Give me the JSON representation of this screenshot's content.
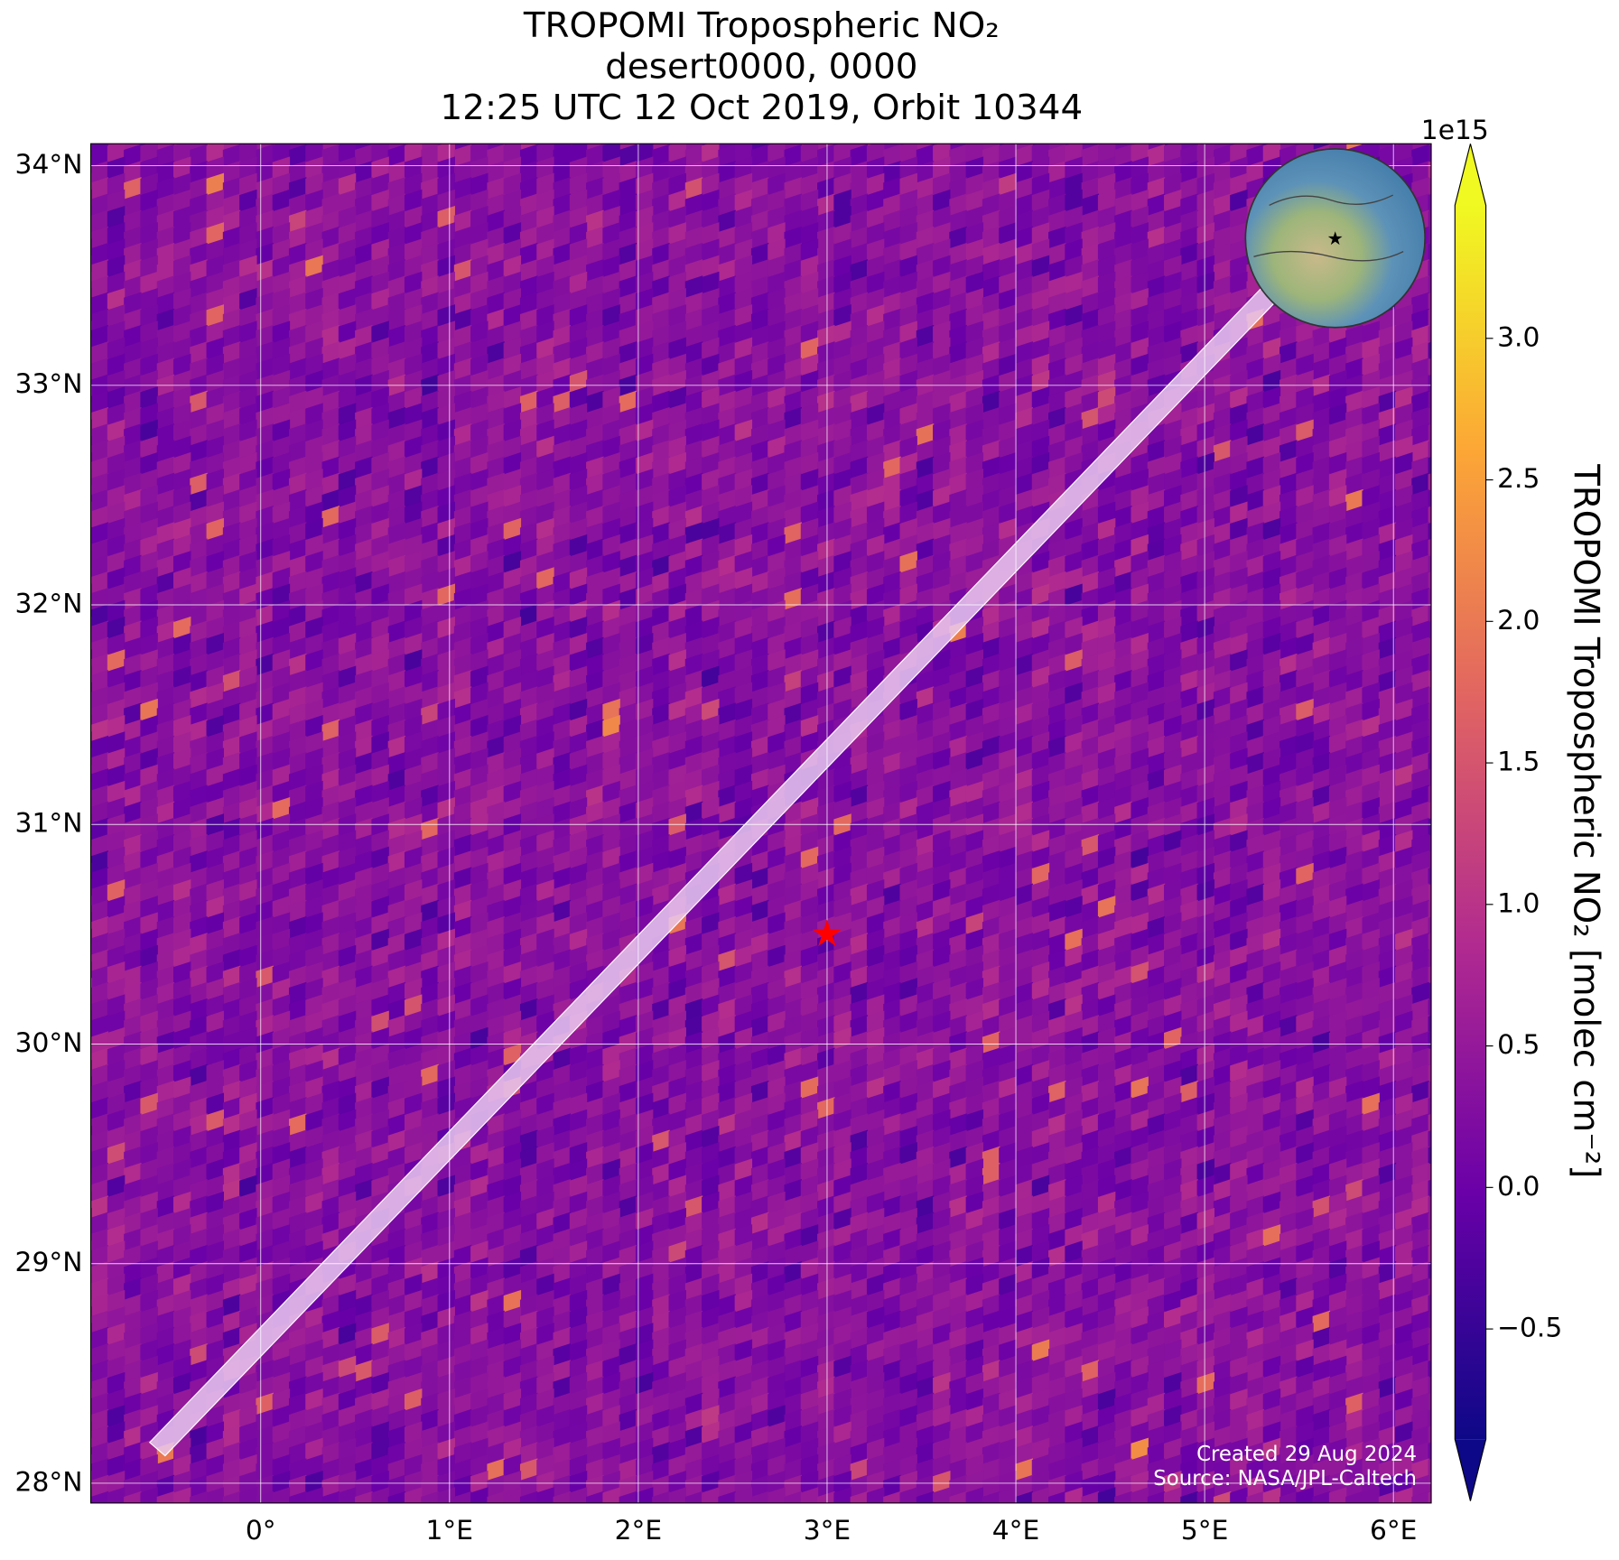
{
  "chart_data": {
    "type": "map",
    "title": [
      "TROPOMI Tropospheric NO₂",
      "desert0000, 0000",
      "12:25 UTC 12 Oct 2019, Orbit 10344"
    ],
    "xlim": [
      -0.9,
      6.2
    ],
    "ylim": [
      27.91,
      34.1
    ],
    "xticks": [
      {
        "value": 0,
        "label": "0°"
      },
      {
        "value": 1,
        "label": "1°E"
      },
      {
        "value": 2,
        "label": "2°E"
      },
      {
        "value": 3,
        "label": "3°E"
      },
      {
        "value": 4,
        "label": "4°E"
      },
      {
        "value": 5,
        "label": "5°E"
      },
      {
        "value": 6,
        "label": "6°E"
      }
    ],
    "yticks": [
      {
        "value": 28,
        "label": "28°N"
      },
      {
        "value": 29,
        "label": "29°N"
      },
      {
        "value": 30,
        "label": "30°N"
      },
      {
        "value": 31,
        "label": "31°N"
      },
      {
        "value": 32,
        "label": "32°N"
      },
      {
        "value": 33,
        "label": "33°N"
      },
      {
        "value": 34,
        "label": "34°N"
      }
    ],
    "grid": true,
    "site": {
      "lon": 3.0,
      "lat": 30.5
    },
    "colorbar": {
      "label": "TROPOMI Tropospheric NO₂ [molec cm⁻²]",
      "offset": "1e15",
      "clim": [
        -0.89,
        3.47
      ],
      "ticks": [
        {
          "value": -0.5,
          "label": "−0.5"
        },
        {
          "value": 0,
          "label": "0.0"
        },
        0.5,
        {
          "value": 1,
          "label": "1.0"
        },
        1.5,
        {
          "value": 2,
          "label": "2.0"
        },
        2.5,
        {
          "value": 3,
          "label": "3.0"
        }
      ]
    },
    "annotations": [
      "Created 29 Aug 2024",
      "Source: NASA/JPL-Caltech"
    ]
  }
}
